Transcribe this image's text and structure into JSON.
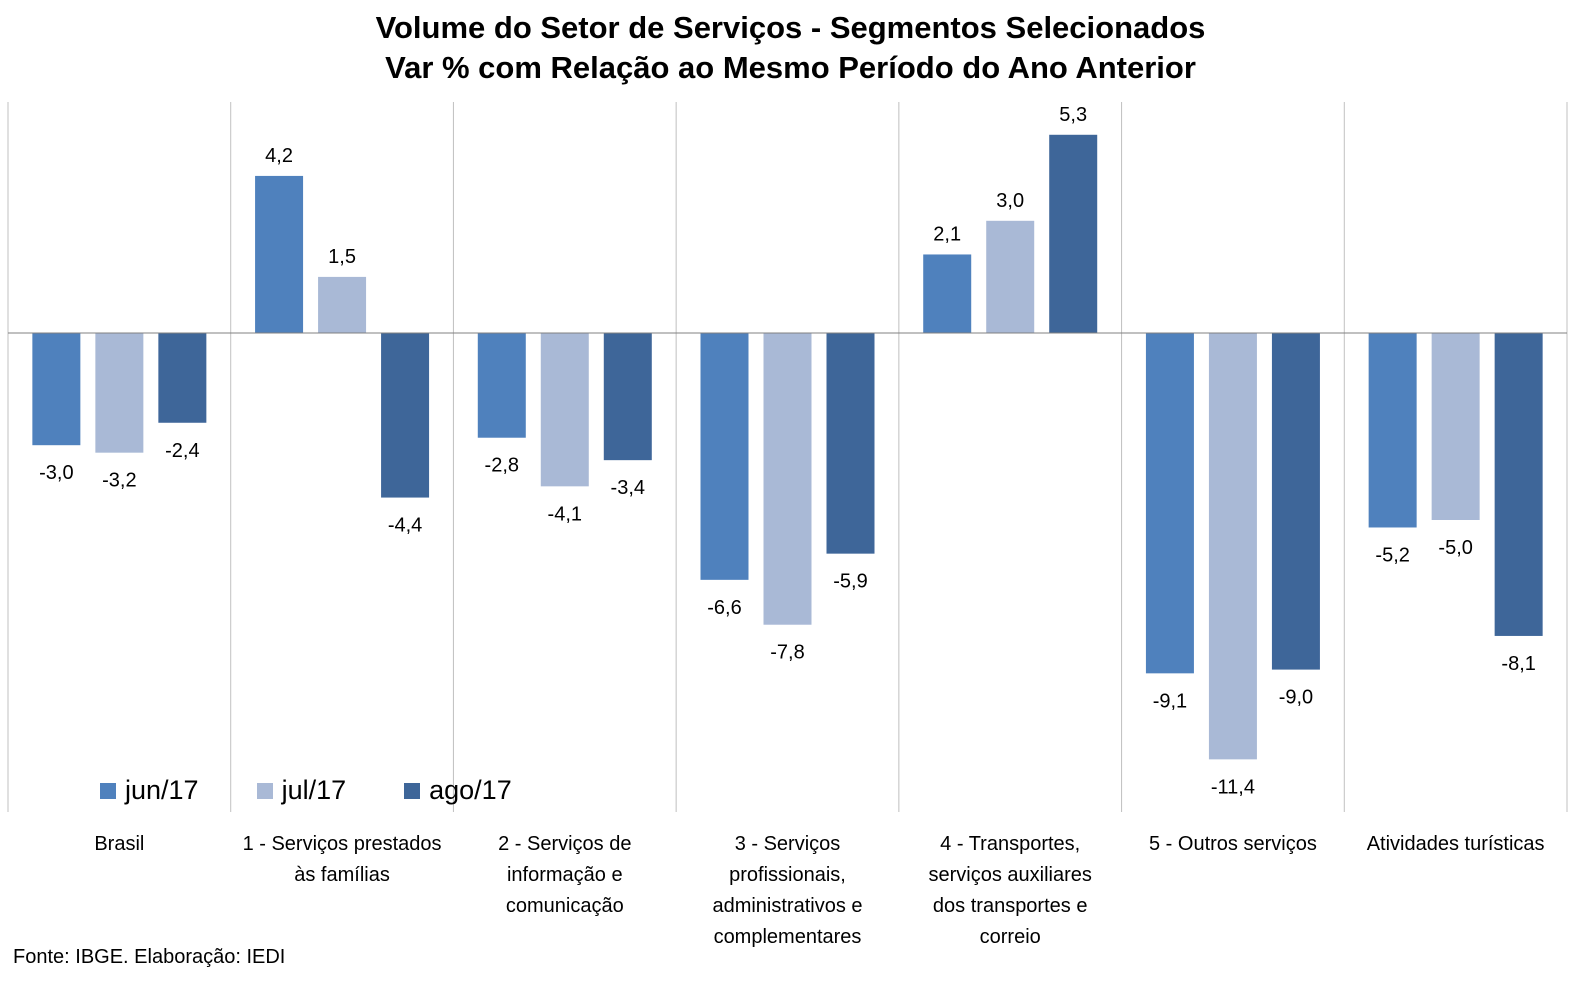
{
  "chart_data": {
    "type": "bar",
    "title": [
      "Volume do Setor de Serviços - Segmentos Selecionados",
      "Var % com Relação ao Mesmo Período do Ano Anterior"
    ],
    "categories": [
      "Brasil",
      "1 - Serviços prestados às famílias",
      "2 - Serviços de informação e comunicação",
      "3 - Serviços profissionais, administrativos e complementares",
      "4 - Transportes, serviços auxiliares dos transportes e correio",
      "5 - Outros serviços",
      "Atividades turísticas"
    ],
    "category_lines": [
      [
        "Brasil"
      ],
      [
        "1 - Serviços prestados",
        "às famílias"
      ],
      [
        "2 - Serviços de",
        "informação e",
        "comunicação"
      ],
      [
        "3 - Serviços",
        "profissionais,",
        "administrativos e",
        "complementares"
      ],
      [
        "4 - Transportes,",
        "serviços auxiliares",
        "dos transportes e",
        "correio"
      ],
      [
        "5 - Outros serviços"
      ],
      [
        "Atividades turísticas"
      ]
    ],
    "series": [
      {
        "name": "jun/17",
        "color": "#4f81bd",
        "values": [
          -3.0,
          4.2,
          -2.8,
          -6.6,
          2.1,
          -9.1,
          -5.2
        ],
        "labels": [
          "-3,0",
          "4,2",
          "-2,8",
          "-6,6",
          "2,1",
          "-9,1",
          "-5,2"
        ]
      },
      {
        "name": "jul/17",
        "color": "#a9b9d6",
        "values": [
          -3.2,
          1.5,
          -4.1,
          -7.8,
          3.0,
          -11.4,
          -5.0
        ],
        "labels": [
          "-3,2",
          "1,5",
          "-4,1",
          "-7,8",
          "3,0",
          "-11,4",
          "-5,0"
        ]
      },
      {
        "name": "ago/17",
        "color": "#3e6699",
        "values": [
          -2.4,
          -4.4,
          -3.4,
          -5.9,
          5.3,
          -9.0,
          -8.1
        ],
        "labels": [
          "-2,4",
          "-4,4",
          "-3,4",
          "-5,9",
          "5,3",
          "-9,0",
          "-8,1"
        ]
      }
    ],
    "ylim": [
      -12.8,
      6.2
    ],
    "grid": false,
    "legend_position": "bottom-left"
  },
  "source_note": "Fonte: IBGE. Elaboração: IEDI"
}
